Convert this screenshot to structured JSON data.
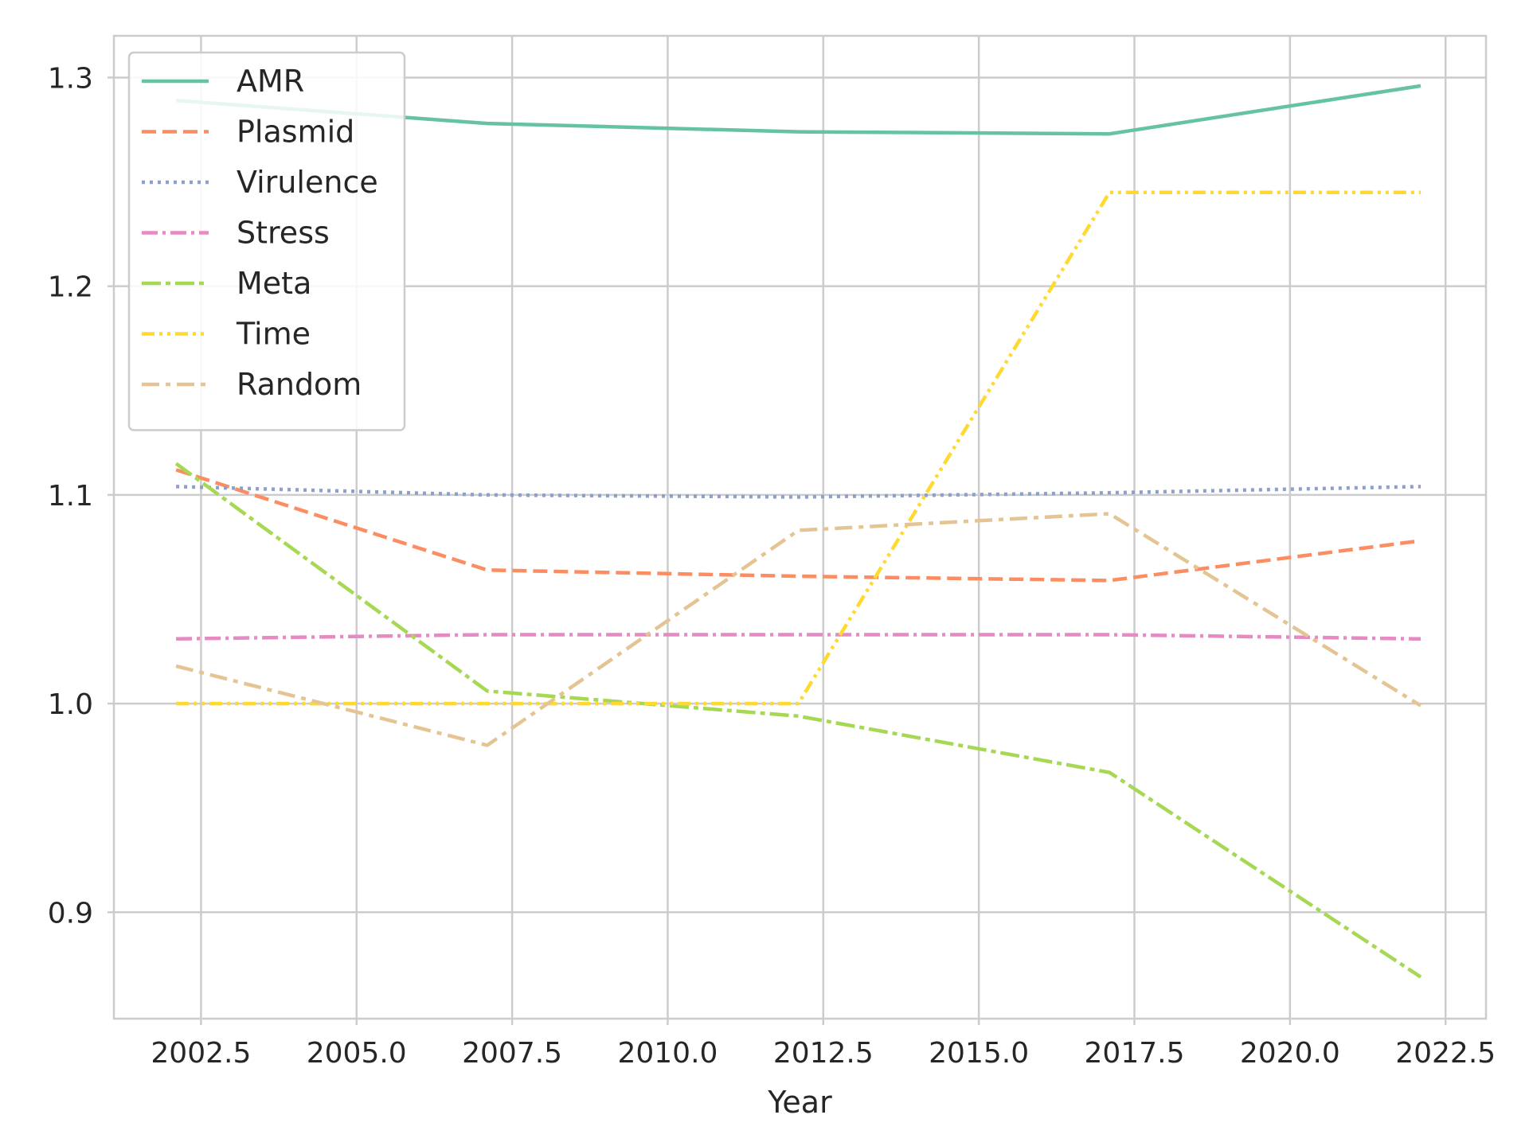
{
  "chart_data": {
    "type": "line",
    "title": "",
    "xlabel": "Year",
    "ylabel": "",
    "xlim": [
      2001.1,
      2023.15
    ],
    "ylim": [
      0.849,
      1.32
    ],
    "xticks": [
      2002.5,
      2005.0,
      2007.5,
      2010.0,
      2012.5,
      2015.0,
      2017.5,
      2020.0,
      2022.5
    ],
    "xtick_labels": [
      "2002.5",
      "2005.0",
      "2007.5",
      "2010.0",
      "2012.5",
      "2015.0",
      "2017.5",
      "2020.0",
      "2022.5"
    ],
    "yticks": [
      0.9,
      1.0,
      1.1,
      1.2,
      1.3
    ],
    "ytick_labels": [
      "0.9",
      "1.0",
      "1.1",
      "1.2",
      "1.3"
    ],
    "grid": true,
    "legend_position": "top-left",
    "x": [
      2002.1,
      2007.1,
      2012.1,
      2017.1,
      2022.1
    ],
    "series": [
      {
        "name": "AMR",
        "values": [
          1.289,
          1.278,
          1.274,
          1.273,
          1.296
        ],
        "color": "#66c2a5",
        "dash": "solid"
      },
      {
        "name": "Plasmid",
        "values": [
          1.112,
          1.064,
          1.061,
          1.059,
          1.078
        ],
        "color": "#fc8d62",
        "dash": "dashed"
      },
      {
        "name": "Virulence",
        "values": [
          1.104,
          1.1,
          1.099,
          1.101,
          1.104
        ],
        "color": "#8da0cb",
        "dash": "dotted"
      },
      {
        "name": "Stress",
        "values": [
          1.031,
          1.033,
          1.033,
          1.033,
          1.031
        ],
        "color": "#e78ac3",
        "dash": "dashdot"
      },
      {
        "name": "Meta",
        "values": [
          1.115,
          1.006,
          0.994,
          0.967,
          0.869
        ],
        "color": "#a6d854",
        "dash": "longdashdot"
      },
      {
        "name": "Time",
        "values": [
          1.0,
          1.0,
          1.0,
          1.245,
          1.245
        ],
        "color": "#ffd92f",
        "dash": "dashdotdot"
      },
      {
        "name": "Random",
        "values": [
          1.018,
          0.98,
          1.083,
          1.091,
          0.999
        ],
        "color": "#e5c494",
        "dash": "dashdotlong"
      }
    ]
  }
}
